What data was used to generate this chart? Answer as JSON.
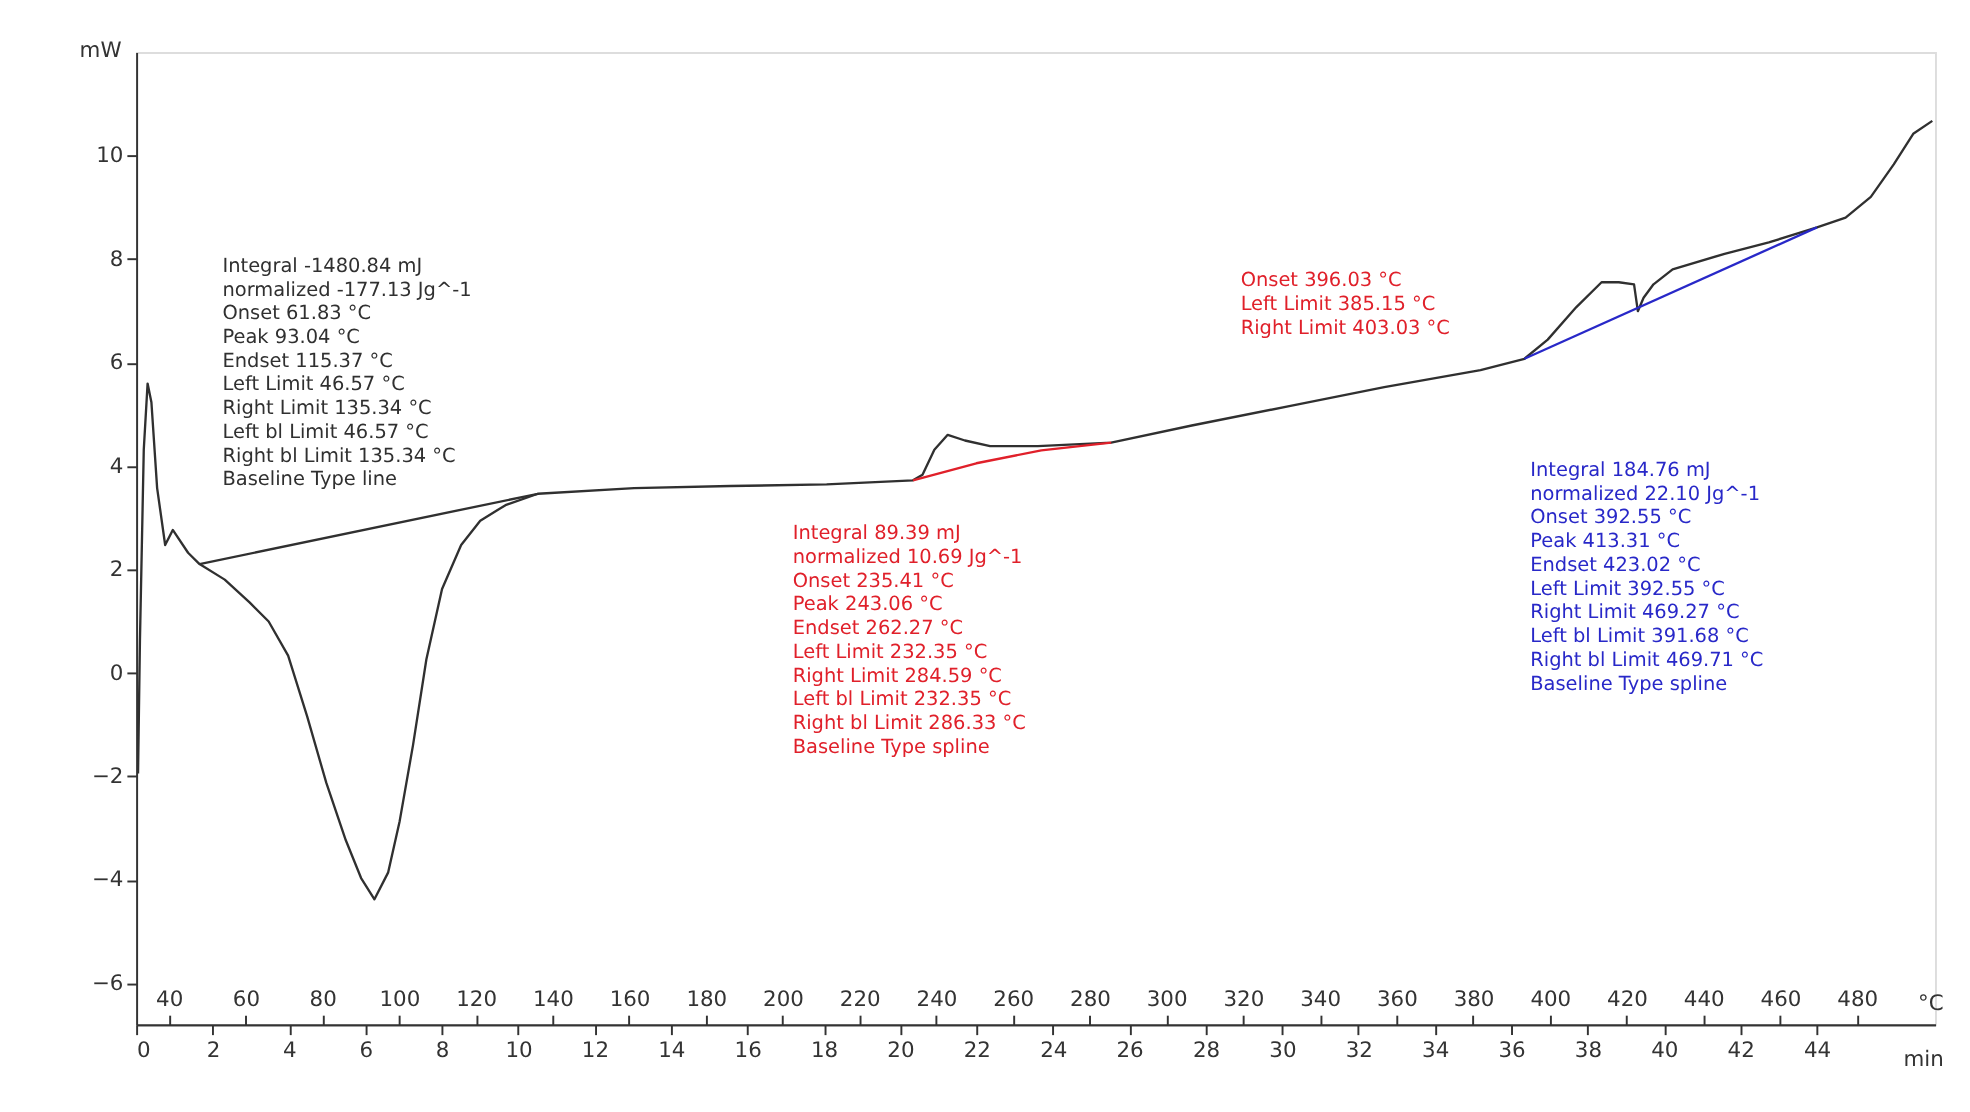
{
  "chart_data": {
    "type": "line",
    "xlabel": "min",
    "x2label": "°C",
    "ylabel": "mW",
    "xlim": [
      0,
      47.1
    ],
    "xticks": [
      0,
      2,
      4,
      6,
      8,
      10,
      12,
      14,
      16,
      18,
      20,
      22,
      24,
      26,
      28,
      30,
      32,
      34,
      36,
      38,
      40,
      42,
      44
    ],
    "x2lim": [
      31.5,
      500.4
    ],
    "x2ticks": [
      40,
      60,
      80,
      100,
      120,
      140,
      160,
      180,
      200,
      220,
      240,
      260,
      280,
      300,
      320,
      340,
      360,
      380,
      400,
      420,
      440,
      460,
      480
    ],
    "ylim": [
      -6.8,
      12
    ],
    "yticks": [
      -6,
      -4,
      -2,
      0,
      2,
      4,
      6,
      8,
      10
    ],
    "grid": false,
    "marker": "none",
    "line_style": "solid",
    "series": [
      {
        "color": "#303030",
        "x": [
          0.05,
          0.1,
          0.2,
          0.3,
          0.4,
          0.55,
          0.76,
          0.96,
          1.36,
          1.66,
          2.32,
          2.97,
          3.47,
          3.98,
          4.48,
          4.98,
          5.49,
          5.89,
          6.24,
          6.6,
          6.9,
          7.25,
          7.6,
          8.01,
          8.51,
          9.01,
          9.67,
          10.52,
          13.04,
          15.56,
          18.08,
          20.34,
          20.59,
          20.9,
          21.25,
          21.7,
          22.36,
          23.61,
          25.53,
          27.64,
          30.16,
          32.68,
          35.2,
          36.35,
          36.96,
          37.71,
          38.37,
          38.82,
          39.22,
          39.32,
          39.47,
          39.73,
          40.23,
          41.59,
          42.75,
          44.01,
          44.76,
          45.42,
          46.02,
          46.53,
          47.03
        ],
        "values": [
          -1.95,
          0.63,
          4.31,
          5.59,
          5.23,
          3.57,
          2.47,
          2.76,
          2.32,
          2.1,
          1.8,
          1.36,
          0.99,
          0.33,
          -0.85,
          -2.13,
          -3.24,
          -3.97,
          -4.38,
          -3.86,
          -2.87,
          -1.4,
          0.26,
          1.62,
          2.47,
          2.94,
          3.24,
          3.46,
          3.57,
          3.61,
          3.64,
          3.72,
          3.83,
          4.31,
          4.6,
          4.49,
          4.38,
          4.38,
          4.45,
          4.78,
          5.15,
          5.52,
          5.85,
          6.07,
          6.44,
          7.07,
          7.55,
          7.55,
          7.51,
          6.99,
          7.25,
          7.51,
          7.8,
          8.1,
          8.32,
          8.61,
          8.8,
          9.2,
          9.83,
          10.42,
          10.67
        ]
      },
      {
        "color": "#303030",
        "x": [
          1.66,
          10.52
        ],
        "values": [
          2.1,
          3.46
        ]
      },
      {
        "color": "#e0202a",
        "x": [
          20.34,
          22.0,
          23.7,
          25.53
        ],
        "values": [
          3.72,
          4.05,
          4.3,
          4.45
        ]
      },
      {
        "color": "#2828c8",
        "x": [
          36.35,
          44.01
        ],
        "values": [
          6.07,
          8.61
        ]
      }
    ],
    "annotations": [
      "Integral -1480.84 mJ",
      "normalized -177.13 Jg^-1",
      "Onset 61.83 °C",
      "Peak 93.04 °C",
      "Endset 115.37 °C",
      "Left Limit 46.57 °C",
      "Right Limit 135.34 °C",
      "Left bl Limit 46.57 °C",
      "Right bl Limit 135.34 °C",
      "Baseline Type line",
      "Integral 89.39 mJ",
      "normalized 10.69 Jg^-1",
      "Onset 235.41 °C",
      "Peak 243.06 °C",
      "Endset 262.27 °C",
      "Left Limit 232.35 °C",
      "Right Limit 284.59 °C",
      "Left bl Limit 232.35 °C",
      "Right bl Limit 286.33 °C",
      "Baseline Type spline",
      "Onset 396.03 °C",
      "Left Limit 385.15 °C",
      "Right Limit 403.03 °C",
      "Integral 184.76 mJ",
      "normalized 22.10 Jg^-1",
      "Onset 392.55 °C",
      "Peak 413.31 °C",
      "Endset 423.02 °C",
      "Left Limit 392.55 °C",
      "Right Limit 469.27 °C",
      "Left bl Limit 391.68 °C",
      "Right bl Limit 469.71 °C",
      "Baseline Type spline"
    ]
  }
}
